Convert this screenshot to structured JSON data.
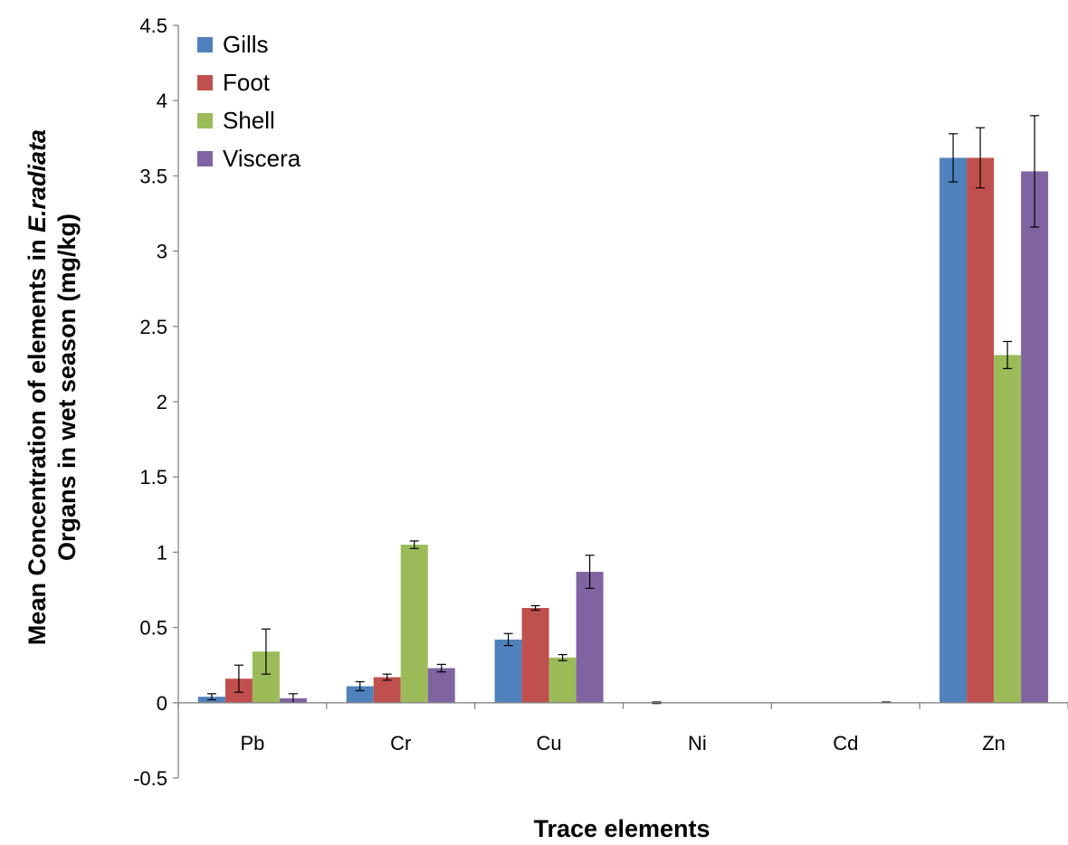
{
  "chart_data": {
    "type": "bar",
    "categories": [
      "Pb",
      "Cr",
      "Cu",
      "Ni",
      "Cd",
      "Zn"
    ],
    "series": [
      {
        "name": "Gills",
        "color": "#4f81bd",
        "values": [
          0.04,
          0.11,
          0.42,
          0.0,
          0.0,
          3.62
        ],
        "errors": [
          0.02,
          0.03,
          0.04,
          0.005,
          0.0,
          0.16
        ]
      },
      {
        "name": "Foot",
        "color": "#c0504d",
        "values": [
          0.16,
          0.17,
          0.63,
          0.0,
          0.0,
          3.62
        ],
        "errors": [
          0.09,
          0.02,
          0.015,
          0.0,
          0.0,
          0.2
        ]
      },
      {
        "name": "Shell",
        "color": "#9bbb59",
        "values": [
          0.34,
          1.05,
          0.3,
          0.0,
          0.0,
          2.31
        ],
        "errors": [
          0.15,
          0.025,
          0.02,
          0.0,
          0.0,
          0.09
        ]
      },
      {
        "name": "Viscera",
        "color": "#8064a2",
        "values": [
          0.03,
          0.23,
          0.87,
          0.0,
          0.003,
          3.53
        ],
        "errors": [
          0.03,
          0.025,
          0.11,
          0.0,
          0.002,
          0.37
        ]
      }
    ],
    "ylim": [
      -0.5,
      4.5
    ],
    "yticks": [
      "-0.5",
      "0",
      "0.5",
      "1",
      "1.5",
      "2",
      "2.5",
      "3",
      "3.5",
      "4",
      "4.5"
    ],
    "ylabel_line1_prefix": "Mean Concentration of elements in",
    "ylabel_line1_italic": "E.radiata",
    "ylabel_line2": "Organs in  wet season (mg/kg)",
    "xlabel": "Trace elements",
    "legend_position": "top-left",
    "grid": false
  }
}
